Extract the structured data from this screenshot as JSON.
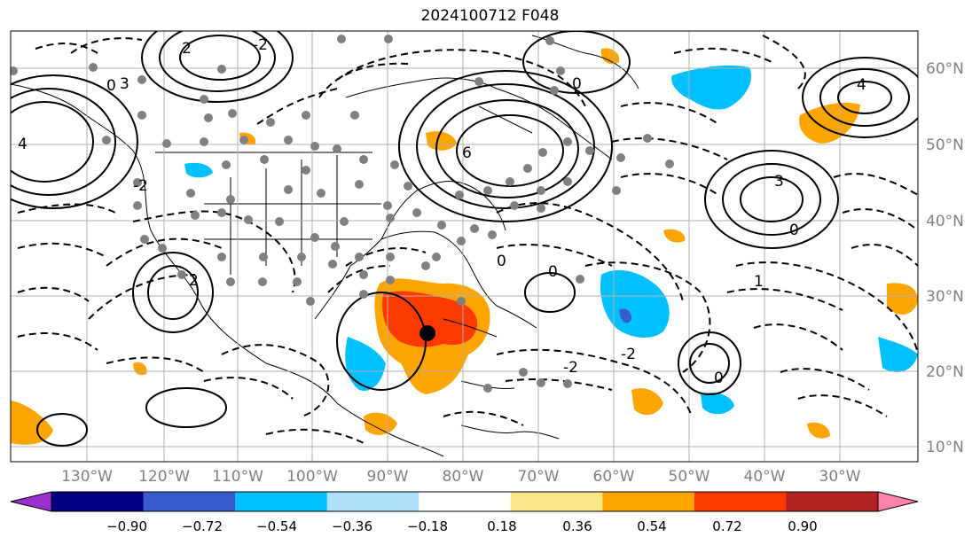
{
  "title": "2024100712 F048",
  "latitude_labels": [
    "60°N",
    "50°N",
    "40°N",
    "30°N",
    "20°N",
    "10°N"
  ],
  "longitude_labels": [
    "130°W",
    "120°W",
    "110°W",
    "100°W",
    "90°W",
    "80°W",
    "70°W",
    "60°W",
    "50°W",
    "40°W",
    "30°W"
  ],
  "colorbar": {
    "ticks": [
      "−0.90",
      "−0.72",
      "−0.54",
      "−0.36",
      "−0.18",
      "0.18",
      "0.36",
      "0.54",
      "0.72",
      "0.90"
    ],
    "colors": [
      "#9b30d0",
      "#000080",
      "#3a5bcc",
      "#00bfff",
      "#b0e0fa",
      "#ffffff",
      "#fde68a",
      "#ffa500",
      "#ff3a00",
      "#b22222",
      "#ff82ab"
    ],
    "under_color": "#9b30d0",
    "over_color": "#ff82ab"
  },
  "contour_labels": [
    "0",
    "2",
    "-2",
    "4",
    "3",
    "6",
    "2",
    "1",
    "-2",
    "-2",
    "0",
    "-2",
    "4",
    "3",
    "0",
    "0",
    "0",
    "0"
  ],
  "marker_colors": {
    "station": "#808080",
    "storm": "#000000"
  }
}
